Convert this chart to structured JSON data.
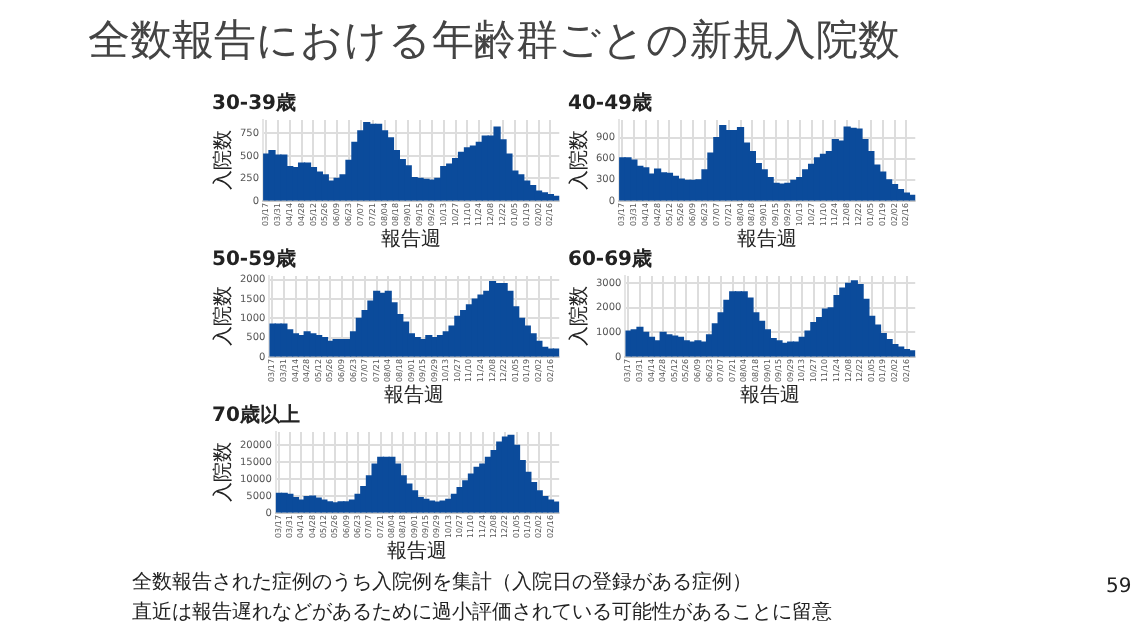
{
  "chart_data": [
    {
      "type": "other",
      "title": "全数報告における年齢群ごとの新規入院数"
    },
    {
      "type": "bar",
      "title": "30-39歳",
      "xlabel": "報告週",
      "ylabel": "入院数",
      "color": "#0b4b9b",
      "grid": true,
      "categories": [
        "03/17",
        null,
        "03/31",
        null,
        "04/14",
        null,
        "04/28",
        null,
        "05/12",
        null,
        "05/26",
        null,
        "06/09",
        null,
        "06/23",
        null,
        "07/07",
        null,
        "07/21",
        null,
        "08/04",
        null,
        "08/18",
        null,
        "09/01",
        null,
        "09/15",
        null,
        "09/29",
        null,
        "10/13",
        null,
        "10/27",
        null,
        "11/10",
        null,
        "11/24",
        null,
        "12/08",
        null,
        "12/22",
        null,
        "01/05",
        null,
        "01/19",
        null,
        "02/02",
        null,
        "02/16",
        null
      ],
      "values": [
        520,
        560,
        510,
        510,
        380,
        370,
        420,
        420,
        370,
        320,
        290,
        220,
        250,
        290,
        450,
        650,
        780,
        870,
        850,
        850,
        780,
        700,
        560,
        460,
        390,
        260,
        250,
        240,
        230,
        250,
        380,
        410,
        470,
        540,
        590,
        610,
        650,
        720,
        720,
        820,
        680,
        520,
        330,
        290,
        220,
        170,
        110,
        90,
        70,
        50
      ],
      "ylim": [
        0,
        900
      ],
      "yticks": [
        0,
        250,
        500,
        750
      ]
    },
    {
      "type": "bar",
      "title": "40-49歳",
      "xlabel": "報告週",
      "ylabel": "入院数",
      "color": "#0b4b9b",
      "grid": true,
      "categories": [
        "03/17",
        null,
        "03/31",
        null,
        "04/14",
        null,
        "04/28",
        null,
        "05/12",
        null,
        "05/26",
        null,
        "06/09",
        null,
        "06/23",
        null,
        "07/07",
        null,
        "07/21",
        null,
        "08/04",
        null,
        "08/18",
        null,
        "09/01",
        null,
        "09/15",
        null,
        "09/29",
        null,
        "10/13",
        null,
        "10/27",
        null,
        "11/10",
        null,
        "11/24",
        null,
        "12/08",
        null,
        "12/22",
        null,
        "01/05",
        null,
        "01/19",
        null,
        "02/02",
        null,
        "02/16",
        null
      ],
      "values": [
        610,
        610,
        580,
        490,
        470,
        380,
        450,
        400,
        390,
        350,
        310,
        290,
        290,
        300,
        440,
        680,
        900,
        1070,
        1000,
        1000,
        1040,
        820,
        700,
        530,
        440,
        330,
        250,
        240,
        250,
        290,
        330,
        440,
        520,
        610,
        660,
        700,
        870,
        850,
        1050,
        1030,
        1020,
        870,
        700,
        510,
        410,
        300,
        230,
        160,
        110,
        80
      ],
      "ylim": [
        0,
        1150
      ],
      "yticks": [
        0,
        300,
        600,
        900
      ]
    },
    {
      "type": "bar",
      "title": "50-59歳",
      "xlabel": "報告週",
      "ylabel": "入院数",
      "color": "#0b4b9b",
      "grid": true,
      "categories": [
        "03/17",
        null,
        "03/31",
        null,
        "04/14",
        null,
        "04/28",
        null,
        "05/12",
        null,
        "05/26",
        null,
        "06/09",
        null,
        "06/23",
        null,
        "07/07",
        null,
        "07/21",
        null,
        "08/04",
        null,
        "08/18",
        null,
        "09/01",
        null,
        "09/15",
        null,
        "09/29",
        null,
        "10/13",
        null,
        "10/27",
        null,
        "11/10",
        null,
        "11/24",
        null,
        "12/08",
        null,
        "12/22",
        null,
        "01/05",
        null,
        "01/19",
        null,
        "02/02",
        null,
        "02/16",
        null
      ],
      "values": [
        850,
        850,
        850,
        700,
        600,
        550,
        650,
        600,
        550,
        500,
        400,
        450,
        450,
        450,
        650,
        1000,
        1200,
        1450,
        1700,
        1650,
        1700,
        1400,
        1100,
        900,
        600,
        500,
        450,
        550,
        500,
        550,
        650,
        800,
        1050,
        1200,
        1350,
        1500,
        1600,
        1700,
        1950,
        1900,
        1900,
        1700,
        1300,
        1000,
        800,
        600,
        400,
        250,
        200,
        200
      ],
      "ylim": [
        0,
        2100
      ],
      "yticks": [
        0,
        500,
        1000,
        1500,
        2000
      ]
    },
    {
      "type": "bar",
      "title": "60-69歳",
      "xlabel": "報告週",
      "ylabel": "入院数",
      "color": "#0b4b9b",
      "grid": true,
      "categories": [
        "03/17",
        null,
        "03/31",
        null,
        "04/14",
        null,
        "04/28",
        null,
        "05/12",
        null,
        "05/26",
        null,
        "06/09",
        null,
        "06/23",
        null,
        "07/07",
        null,
        "07/21",
        null,
        "08/04",
        null,
        "08/18",
        null,
        "09/01",
        null,
        "09/15",
        null,
        "09/29",
        null,
        "10/13",
        null,
        "10/27",
        null,
        "11/10",
        null,
        "11/24",
        null,
        "12/08",
        null,
        "12/22",
        null,
        "01/05",
        null,
        "01/19",
        null,
        "02/02",
        null,
        "02/16",
        null
      ],
      "values": [
        1050,
        1100,
        1200,
        1000,
        800,
        650,
        1000,
        900,
        850,
        800,
        650,
        600,
        650,
        600,
        900,
        1350,
        1800,
        2300,
        2650,
        2650,
        2650,
        2400,
        1800,
        1450,
        1100,
        750,
        650,
        550,
        600,
        600,
        800,
        1050,
        1400,
        1600,
        1950,
        2000,
        2500,
        2800,
        3000,
        3100,
        2950,
        2350,
        1650,
        1300,
        950,
        700,
        500,
        400,
        300,
        250
      ],
      "ylim": [
        0,
        3300
      ],
      "yticks": [
        0,
        1000,
        2000,
        3000
      ]
    },
    {
      "type": "bar",
      "title": "70歳以上",
      "xlabel": "報告週",
      "ylabel": "入院数",
      "color": "#0b4b9b",
      "grid": true,
      "categories": [
        "03/17",
        null,
        "03/31",
        null,
        "04/14",
        null,
        "04/28",
        null,
        "05/12",
        null,
        "05/26",
        null,
        "06/09",
        null,
        "06/23",
        null,
        "07/07",
        null,
        "07/21",
        null,
        "08/04",
        null,
        "08/18",
        null,
        "09/01",
        null,
        "09/15",
        null,
        "09/29",
        null,
        "10/13",
        null,
        "10/27",
        null,
        "11/10",
        null,
        "11/24",
        null,
        "12/08",
        null,
        "12/22",
        null,
        "01/05",
        null,
        "01/19",
        null,
        "02/02",
        null,
        "02/16",
        null
      ],
      "values": [
        5800,
        5800,
        5500,
        4500,
        3800,
        4800,
        5000,
        4400,
        3800,
        3300,
        3000,
        3300,
        3300,
        3800,
        5500,
        7800,
        11000,
        14500,
        16500,
        16500,
        16500,
        14500,
        11000,
        8500,
        6500,
        4500,
        4000,
        3500,
        3200,
        3500,
        4000,
        5500,
        7500,
        9500,
        11500,
        13500,
        14500,
        16500,
        18500,
        21000,
        22500,
        23000,
        20000,
        15500,
        12000,
        9000,
        6500,
        4800,
        3800,
        3200
      ],
      "ylim": [
        0,
        24000
      ],
      "yticks": [
        0,
        5000,
        10000,
        15000,
        20000
      ]
    },
    {
      "type": "other",
      "annotations": [
        "全数報告された症例のうち入院例を集計（入院日の登録がある症例）",
        "直近は報告遅れなどがあるために過小評価されている可能性があることに留意",
        "59"
      ]
    }
  ]
}
